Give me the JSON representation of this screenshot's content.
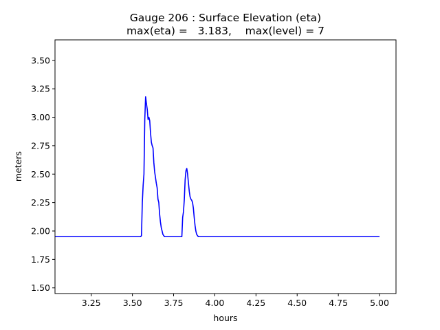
{
  "chart_data": {
    "type": "line",
    "title": "Gauge 206 : Surface Elevation (eta)",
    "subtitle": "max(eta) =   3.183,    max(level) = 7",
    "xlabel": "hours",
    "ylabel": "meters",
    "xlim": [
      3.03,
      5.1
    ],
    "ylim": [
      1.45,
      3.68
    ],
    "x_ticks": [
      3.25,
      3.5,
      3.75,
      4.0,
      4.25,
      4.5,
      4.75,
      5.0
    ],
    "x_tick_labels": [
      "3.25",
      "3.50",
      "3.75",
      "4.00",
      "4.25",
      "4.50",
      "4.75",
      "5.00"
    ],
    "y_ticks": [
      1.5,
      1.75,
      2.0,
      2.25,
      2.5,
      2.75,
      3.0,
      3.25,
      3.5
    ],
    "y_tick_labels": [
      "1.50",
      "1.75",
      "2.00",
      "2.25",
      "2.50",
      "2.75",
      "3.00",
      "3.25",
      "3.50"
    ],
    "grid": false,
    "series": [
      {
        "color": "#0000ff",
        "x": [
          3.03,
          3.55,
          3.555,
          3.56,
          3.565,
          3.57,
          3.575,
          3.58,
          3.585,
          3.59,
          3.595,
          3.6,
          3.605,
          3.61,
          3.615,
          3.62,
          3.625,
          3.63,
          3.635,
          3.64,
          3.645,
          3.65,
          3.655,
          3.66,
          3.665,
          3.67,
          3.675,
          3.68,
          3.685,
          3.69,
          3.695,
          3.7,
          3.705,
          3.71,
          3.715,
          3.72,
          3.725,
          3.73,
          3.8,
          3.805,
          3.81,
          3.815,
          3.82,
          3.825,
          3.83,
          3.835,
          3.84,
          3.845,
          3.85,
          3.855,
          3.86,
          3.865,
          3.87,
          3.875,
          3.88,
          3.885,
          3.89,
          3.895,
          3.9,
          3.905,
          3.91,
          3.92,
          4.5,
          5.0
        ],
        "y": [
          1.95,
          1.95,
          1.96,
          2.25,
          2.4,
          2.5,
          2.98,
          3.18,
          3.12,
          3.07,
          2.98,
          3.0,
          2.97,
          2.86,
          2.78,
          2.75,
          2.73,
          2.6,
          2.52,
          2.47,
          2.42,
          2.38,
          2.28,
          2.25,
          2.15,
          2.08,
          2.03,
          2.0,
          1.97,
          1.96,
          1.95,
          1.95,
          1.95,
          1.95,
          1.95,
          1.95,
          1.95,
          1.95,
          1.95,
          2.12,
          2.17,
          2.28,
          2.45,
          2.53,
          2.55,
          2.5,
          2.42,
          2.35,
          2.3,
          2.28,
          2.27,
          2.25,
          2.2,
          2.12,
          2.05,
          2.0,
          1.97,
          1.96,
          1.95,
          1.95,
          1.95,
          1.95,
          1.95,
          1.95
        ]
      }
    ]
  }
}
